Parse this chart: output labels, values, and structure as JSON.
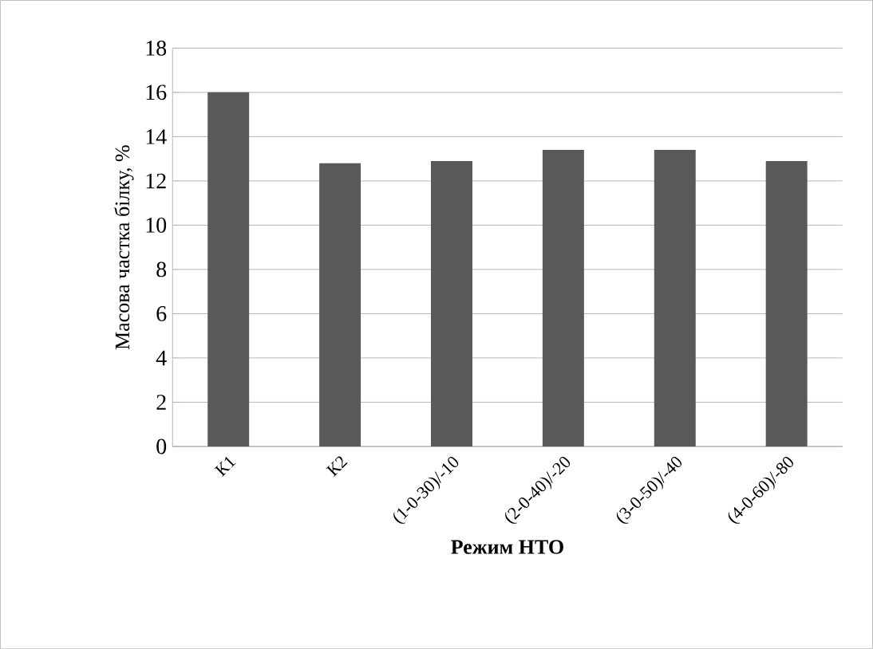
{
  "chart_data": {
    "type": "bar",
    "xlabel": "Режим НТО",
    "ylabel": "Масова частка білку, %",
    "categories": [
      "К1",
      "К2",
      "(1-0-30)/-10",
      "(2-0-40)/-20",
      "(3-0-50)/-40",
      "(4-0-60)/-80"
    ],
    "values": [
      16.0,
      12.8,
      12.9,
      13.4,
      13.4,
      12.9
    ],
    "color": "#595959",
    "ylim": [
      0,
      18
    ],
    "yticks": [
      0,
      2,
      4,
      6,
      8,
      10,
      12,
      14,
      16,
      18
    ],
    "grid": "y"
  }
}
